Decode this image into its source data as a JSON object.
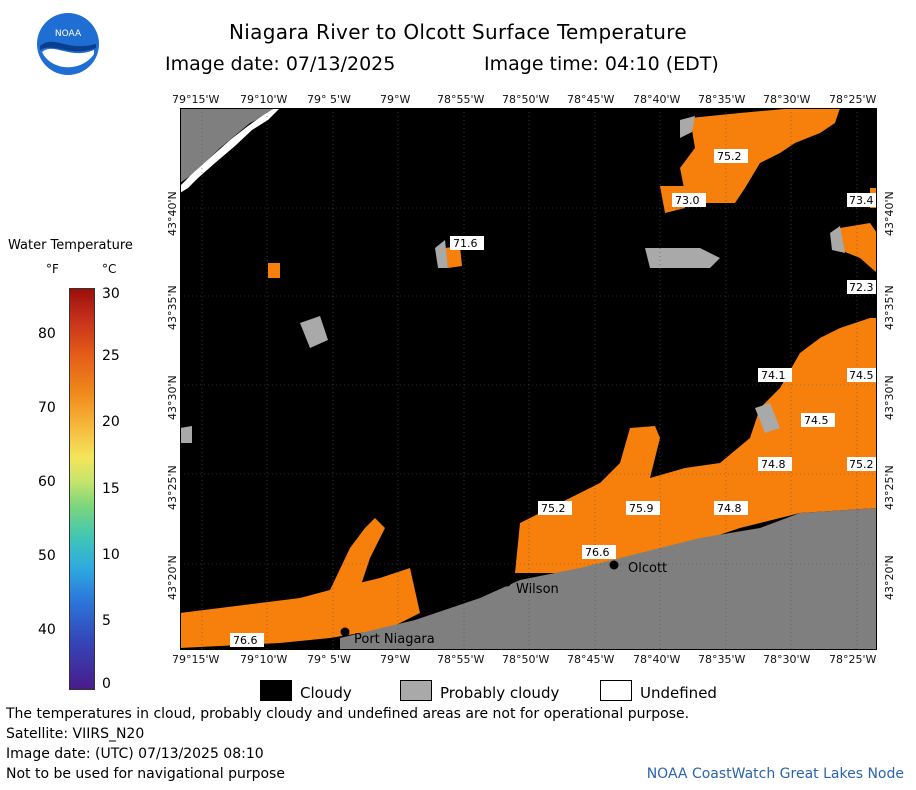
{
  "header": {
    "title": "Niagara River to Olcott Surface Temperature",
    "image_date": "Image date: 07/13/2025",
    "image_time": "Image time: 04:10 (EDT)"
  },
  "logo": {
    "text": "NOAA"
  },
  "legend": {
    "title": "Water Temperature",
    "unit_f": "°F",
    "unit_c": "°C",
    "f_ticks": [
      "80",
      "70",
      "60",
      "50",
      "40"
    ],
    "c_ticks": [
      "30",
      "25",
      "20",
      "15",
      "10",
      "5",
      "0"
    ]
  },
  "longitude_labels": [
    "79°15'W",
    "79°10'W",
    "79° 5'W",
    "79°W",
    "78°55'W",
    "78°50'W",
    "78°45'W",
    "78°40'W",
    "78°35'W",
    "78°30'W",
    "78°25'W"
  ],
  "latitude_labels": [
    "43°40'N",
    "43°35'N",
    "43°30'N",
    "43°25'N",
    "43°20'N"
  ],
  "temperature_labels": [
    "75.2",
    "73.0",
    "73.4",
    "71.6",
    "72.3",
    "74.1",
    "74.5",
    "74.5",
    "74.8",
    "75.2",
    "75.2",
    "75.9",
    "74.8",
    "76.6",
    "76.6"
  ],
  "places": [
    "Olcott",
    "Wilson",
    "Port Niagara"
  ],
  "key": {
    "cloudy": "Cloudy",
    "probably_cloudy": "Probably cloudy",
    "undefined": "Undefined"
  },
  "footer": {
    "disclaimer": "The temperatures in cloud, probably cloudy and undefined areas are not for operational purpose.",
    "satellite": "Satellite: VIIRS_N20",
    "utc_date": "Image date: (UTC) 07/13/2025  08:10",
    "nav_warning": "Not to be used for navigational purpose",
    "credit": "NOAA CoastWatch Great Lakes Node"
  },
  "colors": {
    "cloudy": "#000000",
    "probably_cloudy": "#a9a9a9",
    "land": "#7f7f7f",
    "water_warm": "#f77f0c"
  }
}
